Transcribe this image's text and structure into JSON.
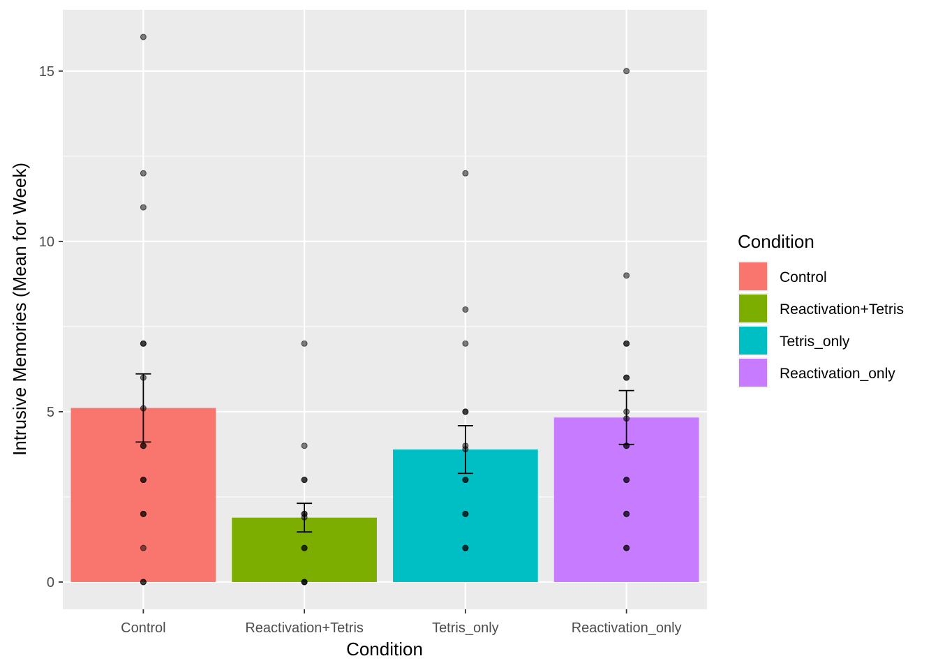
{
  "chart_data": {
    "type": "bar",
    "xlabel": "Condition",
    "ylabel": "Intrusive Memories (Mean for Week)",
    "categories": [
      "Control",
      "Reactivation+Tetris",
      "Tetris_only",
      "Reactivation_only"
    ],
    "values": [
      5.11,
      1.89,
      3.89,
      4.83
    ],
    "error_bars": [
      {
        "low": 4.11,
        "high": 6.11
      },
      {
        "low": 1.47,
        "high": 2.31
      },
      {
        "low": 3.19,
        "high": 4.59
      },
      {
        "low": 4.04,
        "high": 5.62
      }
    ],
    "points": [
      [
        16,
        12,
        11,
        7,
        7,
        6,
        5.1,
        4,
        4,
        3,
        3,
        2,
        2,
        1,
        0,
        0
      ],
      [
        7,
        4,
        3,
        3,
        2,
        2,
        1.9,
        1,
        1,
        0,
        0,
        0
      ],
      [
        12,
        8,
        7,
        5,
        5,
        4,
        3.9,
        3,
        3,
        2,
        2,
        1,
        1
      ],
      [
        15,
        9,
        7,
        7,
        6,
        6,
        5,
        4.8,
        4,
        4,
        3,
        3,
        2,
        2,
        1,
        1
      ]
    ],
    "ylim": [
      -0.8,
      16.8
    ],
    "y_ticks": [
      0,
      5,
      10,
      15
    ],
    "grid": true,
    "legend": {
      "title": "Condition",
      "position": "right",
      "entries": [
        "Control",
        "Reactivation+Tetris",
        "Tetris_only",
        "Reactivation_only"
      ]
    },
    "colors": [
      "#F8766D",
      "#7CAE00",
      "#00BFC4",
      "#C77CFF"
    ],
    "panel_color": "#EBEBEB",
    "grid_color": "#FFFFFF"
  }
}
